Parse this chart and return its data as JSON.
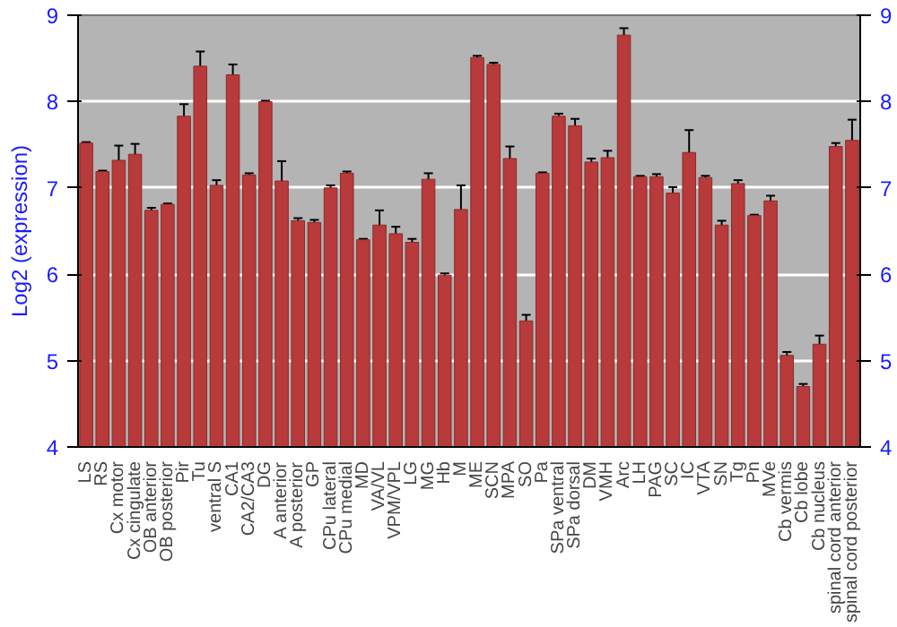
{
  "chart_data": {
    "type": "bar",
    "ylabel": "Log2 (expression)",
    "categories": [
      "LS",
      "RS",
      "Cx motor",
      "Cx cingulate",
      "OB anterior",
      "OB posterior",
      "Pir",
      "Tu",
      "ventral S",
      "CA1",
      "CA2/CA3",
      "DG",
      "A anterior",
      "A posterior",
      "GP",
      "CPu lateral",
      "CPu medial",
      "MD",
      "VA/VL",
      "VPM/VPL",
      "LG",
      "MG",
      "Hb",
      "M",
      "ME",
      "SCN",
      "MPA",
      "SO",
      "Pa",
      "SPa ventral",
      "SPa dorsal",
      "DM",
      "VMH",
      "Arc",
      "LH",
      "PAG",
      "SC",
      "IC",
      "VTA",
      "SN",
      "Tg",
      "Pn",
      "MVe",
      "Cb vermis",
      "Cb lobe",
      "Cb nucleus",
      "spinal cord anterior",
      "spinal cord posterior"
    ],
    "values": [
      7.52,
      7.19,
      7.32,
      7.39,
      6.74,
      6.81,
      7.83,
      8.41,
      7.03,
      8.31,
      7.15,
      8.0,
      7.08,
      6.62,
      6.6,
      7.0,
      7.17,
      6.4,
      6.57,
      6.47,
      6.37,
      7.1,
      5.99,
      6.75,
      8.51,
      8.43,
      7.34,
      5.46,
      7.17,
      7.83,
      7.72,
      7.3,
      7.35,
      8.77,
      7.13,
      7.13,
      6.94,
      7.41,
      7.12,
      6.57,
      7.05,
      6.68,
      6.85,
      5.06,
      4.7,
      5.19,
      7.48,
      7.55
    ],
    "errors": [
      0.01,
      0.01,
      0.17,
      0.12,
      0.03,
      0.01,
      0.14,
      0.17,
      0.06,
      0.12,
      0.02,
      0.01,
      0.23,
      0.03,
      0.03,
      0.03,
      0.02,
      0.01,
      0.17,
      0.08,
      0.04,
      0.07,
      0.02,
      0.28,
      0.02,
      0.02,
      0.14,
      0.07,
      0.01,
      0.03,
      0.08,
      0.04,
      0.08,
      0.08,
      0.01,
      0.03,
      0.07,
      0.26,
      0.02,
      0.05,
      0.04,
      0.01,
      0.06,
      0.04,
      0.03,
      0.1,
      0.04,
      0.24
    ],
    "color": "#b83a3a",
    "ylim": [
      4,
      9
    ],
    "yticks": [
      4,
      5,
      6,
      7,
      8,
      9
    ],
    "y2lim": [
      4,
      9
    ],
    "y2ticks": [
      4,
      5,
      6,
      7,
      8,
      9
    ],
    "grid": "y"
  }
}
